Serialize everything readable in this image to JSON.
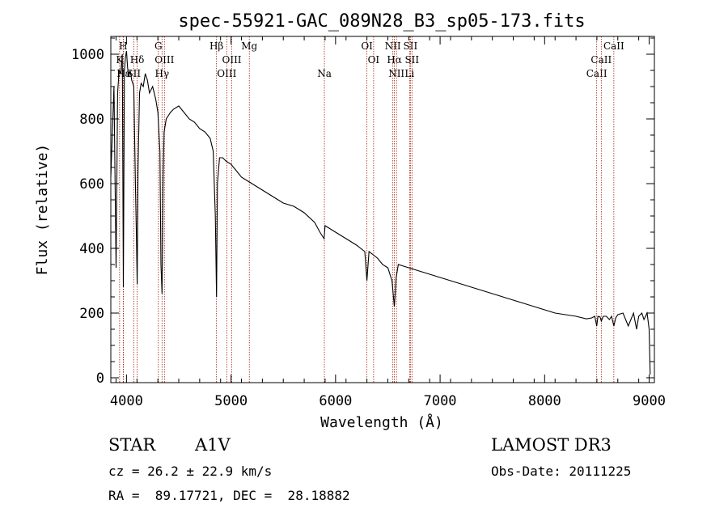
{
  "chart_data": {
    "type": "line",
    "title": "spec-55921-GAC_089N28_B3_sp05-173.fits",
    "xlabel": "Wavelength (Å)",
    "ylabel": "Flux (relative)",
    "xlim": [
      3850,
      9050
    ],
    "ylim": [
      -15,
      1055
    ],
    "xticks": [
      4000,
      5000,
      6000,
      7000,
      8000,
      9000
    ],
    "yticks": [
      0,
      200,
      400,
      600,
      800,
      1000
    ],
    "series": [
      {
        "name": "spectrum",
        "x": [
          3850,
          3880,
          3900,
          3915,
          3930,
          3945,
          3960,
          3970,
          3980,
          3990,
          4000,
          4010,
          4020,
          4035,
          4050,
          4070,
          4085,
          4095,
          4102,
          4110,
          4125,
          4140,
          4160,
          4180,
          4200,
          4220,
          4250,
          4280,
          4300,
          4320,
          4330,
          4340,
          4350,
          4360,
          4380,
          4400,
          4420,
          4450,
          4500,
          4550,
          4600,
          4650,
          4700,
          4750,
          4800,
          4830,
          4850,
          4861,
          4870,
          4890,
          4920,
          4950,
          5000,
          5050,
          5100,
          5150,
          5200,
          5300,
          5400,
          5500,
          5600,
          5700,
          5800,
          5850,
          5890,
          5900,
          5950,
          6000,
          6100,
          6200,
          6280,
          6300,
          6320,
          6400,
          6450,
          6500,
          6540,
          6562,
          6580,
          6600,
          6700,
          6800,
          6900,
          7000,
          7100,
          7200,
          7300,
          7400,
          7500,
          7600,
          7700,
          7800,
          7900,
          8000,
          8100,
          8200,
          8300,
          8400,
          8450,
          8480,
          8498,
          8510,
          8530,
          8542,
          8560,
          8590,
          8620,
          8640,
          8662,
          8680,
          8700,
          8750,
          8800,
          8850,
          8880,
          8900,
          8930,
          8950,
          8980,
          9000,
          9010
        ],
        "y": [
          620,
          900,
          340,
          880,
          950,
          940,
          1000,
          280,
          950,
          990,
          1010,
          960,
          930,
          950,
          920,
          900,
          600,
          430,
          290,
          640,
          880,
          910,
          900,
          940,
          920,
          880,
          900,
          860,
          820,
          700,
          350,
          260,
          620,
          760,
          800,
          810,
          820,
          830,
          840,
          820,
          800,
          790,
          770,
          760,
          740,
          700,
          500,
          250,
          600,
          680,
          680,
          670,
          660,
          640,
          620,
          610,
          600,
          580,
          560,
          540,
          530,
          510,
          480,
          450,
          430,
          470,
          460,
          450,
          430,
          410,
          390,
          300,
          390,
          370,
          350,
          340,
          300,
          220,
          310,
          350,
          340,
          330,
          320,
          310,
          300,
          290,
          280,
          270,
          260,
          250,
          240,
          230,
          220,
          210,
          200,
          195,
          190,
          182,
          185,
          190,
          160,
          190,
          188,
          175,
          190,
          190,
          180,
          190,
          160,
          185,
          195,
          200,
          160,
          200,
          150,
          190,
          200,
          180,
          200,
          150,
          10
        ]
      }
    ],
    "lines": [
      {
        "name": "K",
        "wl": 3934,
        "row": 1
      },
      {
        "name": "H",
        "wl": 3969,
        "row": 0
      },
      {
        "name": "Hε",
        "wl": 3970,
        "row": 2
      },
      {
        "name": "SII",
        "wl": 4069,
        "row": 2
      },
      {
        "name": "Hδ",
        "wl": 4102,
        "row": 1
      },
      {
        "name": "G",
        "wl": 4305,
        "row": 0
      },
      {
        "name": "OIII",
        "wl": 4363,
        "row": 1
      },
      {
        "name": "Hγ",
        "wl": 4340,
        "row": 2
      },
      {
        "name": "Hβ",
        "wl": 4861,
        "row": 0
      },
      {
        "name": "OIII",
        "wl": 4959,
        "row": 2
      },
      {
        "name": "OIII",
        "wl": 5007,
        "row": 1
      },
      {
        "name": "Mg",
        "wl": 5175,
        "row": 0
      },
      {
        "name": "Na",
        "wl": 5893,
        "row": 2
      },
      {
        "name": "OI",
        "wl": 6300,
        "row": 0
      },
      {
        "name": "OI",
        "wl": 6364,
        "row": 1
      },
      {
        "name": "NII",
        "wl": 6548,
        "row": 0
      },
      {
        "name": "Hα",
        "wl": 6563,
        "row": 1
      },
      {
        "name": "NII",
        "wl": 6583,
        "row": 2
      },
      {
        "name": "SII",
        "wl": 6716,
        "row": 0
      },
      {
        "name": "SII",
        "wl": 6731,
        "row": 1
      },
      {
        "name": "Li",
        "wl": 6708,
        "row": 2
      },
      {
        "name": "CaII",
        "wl": 8498,
        "row": 2
      },
      {
        "name": "CaII",
        "wl": 8542,
        "row": 1
      },
      {
        "name": "CaII",
        "wl": 8662,
        "row": 0
      }
    ]
  },
  "info": {
    "class": "STAR",
    "subclass": "A1V",
    "survey": "LAMOST DR3",
    "cz": "cz = 26.2 ± 22.9 km/s",
    "obs_date": "Obs-Date: 20111225",
    "radec": "RA =  89.17721, DEC =  28.18882"
  },
  "colors": {
    "line_marker": "#a0200f",
    "spectrum": "#000000"
  }
}
